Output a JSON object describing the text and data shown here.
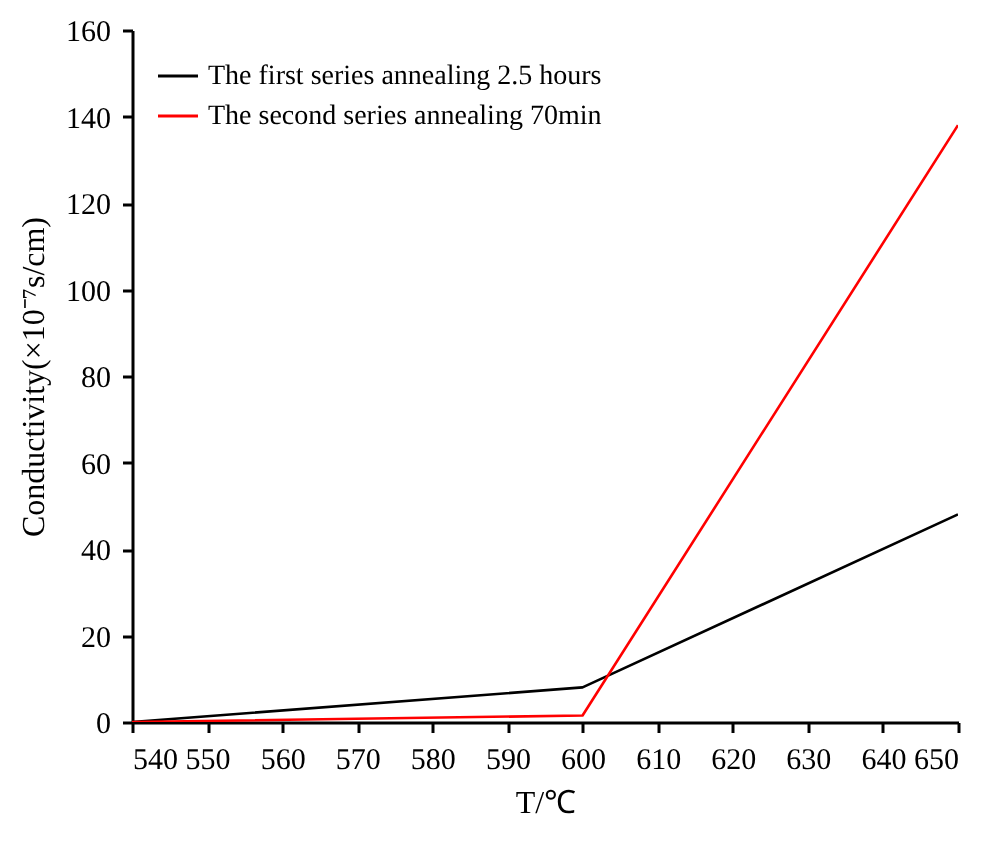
{
  "chart_data": {
    "type": "line",
    "xlabel": "T/℃",
    "ylabel": "Conductivity(×10⁻⁷s/cm)",
    "x": [
      540,
      600,
      650
    ],
    "series": [
      {
        "name": "The first series annealing 2.5 hours",
        "color": "#000000",
        "values": [
          0,
          8,
          48
        ]
      },
      {
        "name": "The second series annealing 70min",
        "color": "#ff0000",
        "values": [
          0,
          1.5,
          138
        ]
      }
    ],
    "xlim": [
      540,
      650
    ],
    "xticks": [
      540,
      550,
      560,
      570,
      580,
      590,
      600,
      610,
      620,
      630,
      640,
      650
    ],
    "ylim": [
      0,
      160
    ],
    "yticks": [
      0,
      20,
      40,
      60,
      80,
      100,
      120,
      140,
      160
    ],
    "grid": false,
    "legend": "top left",
    "marker": "none",
    "line_style": "solid"
  }
}
